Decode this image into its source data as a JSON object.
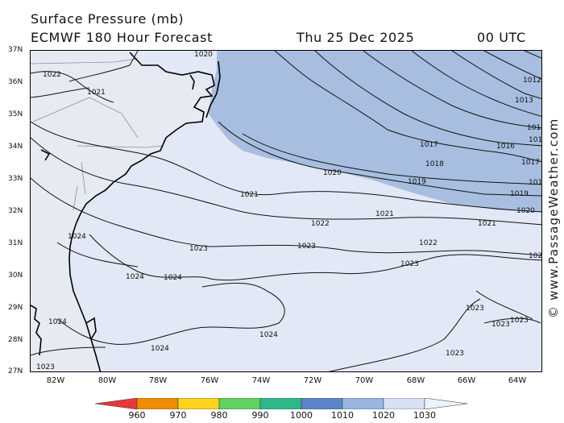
{
  "header": {
    "title": "Surface Pressure (mb)",
    "model": "ECMWF 180 Hour Forecast",
    "valid_date": "Thu 25 Dec 2025",
    "valid_time": "00 UTC"
  },
  "axes": {
    "lat_labels": [
      "37N",
      "36N",
      "35N",
      "34N",
      "33N",
      "32N",
      "31N",
      "30N",
      "29N",
      "28N",
      "27N"
    ],
    "lon_labels": [
      "82W",
      "80W",
      "78W",
      "76W",
      "74W",
      "72W",
      "70W",
      "68W",
      "66W",
      "64W"
    ]
  },
  "isobar_labels": {
    "l1020": "1020",
    "l1022": "1022",
    "l1021": "1021",
    "l1012": "1012",
    "l1013": "1013",
    "l101a": "101",
    "l101b": "101",
    "l1017a": "1017",
    "l1016": "1016",
    "l1018": "1018",
    "l1017b": "1017",
    "l101c": "101",
    "l1020b": "1020",
    "l1019a": "1019",
    "l1019b": "1019",
    "l1020c": "1020",
    "l1021a": "1021",
    "l1021b": "1021",
    "l1021c": "1021",
    "l1022a": "1022",
    "l1022b": "1022",
    "l1023a": "1023",
    "l1023b": "1023",
    "l1023c": "1023",
    "l102": "102",
    "l1024a": "1024",
    "l1024b": "1024",
    "l1024c": "1024",
    "l1024d": "1024",
    "l1024e": "1024",
    "l1024f": "1024",
    "l1023d": "1023",
    "l1023e": "1023",
    "l1023f": "1023",
    "l1023g": "1023",
    "l1023h": "1023"
  },
  "colorbar": {
    "labels": [
      "960",
      "970",
      "980",
      "990",
      "1000",
      "1010",
      "1020",
      "1030"
    ],
    "colors": [
      "#e53a3a",
      "#f08c00",
      "#ffd21f",
      "#5fd35f",
      "#2eb88a",
      "#5a86c8",
      "#98b6e0",
      "#d7e1f3",
      "#eef2fa"
    ]
  },
  "watermark": "© www.PassageWeather.com",
  "colors": {
    "low_fill": "#a7bee0",
    "high_fill": "#e2e8f5"
  }
}
